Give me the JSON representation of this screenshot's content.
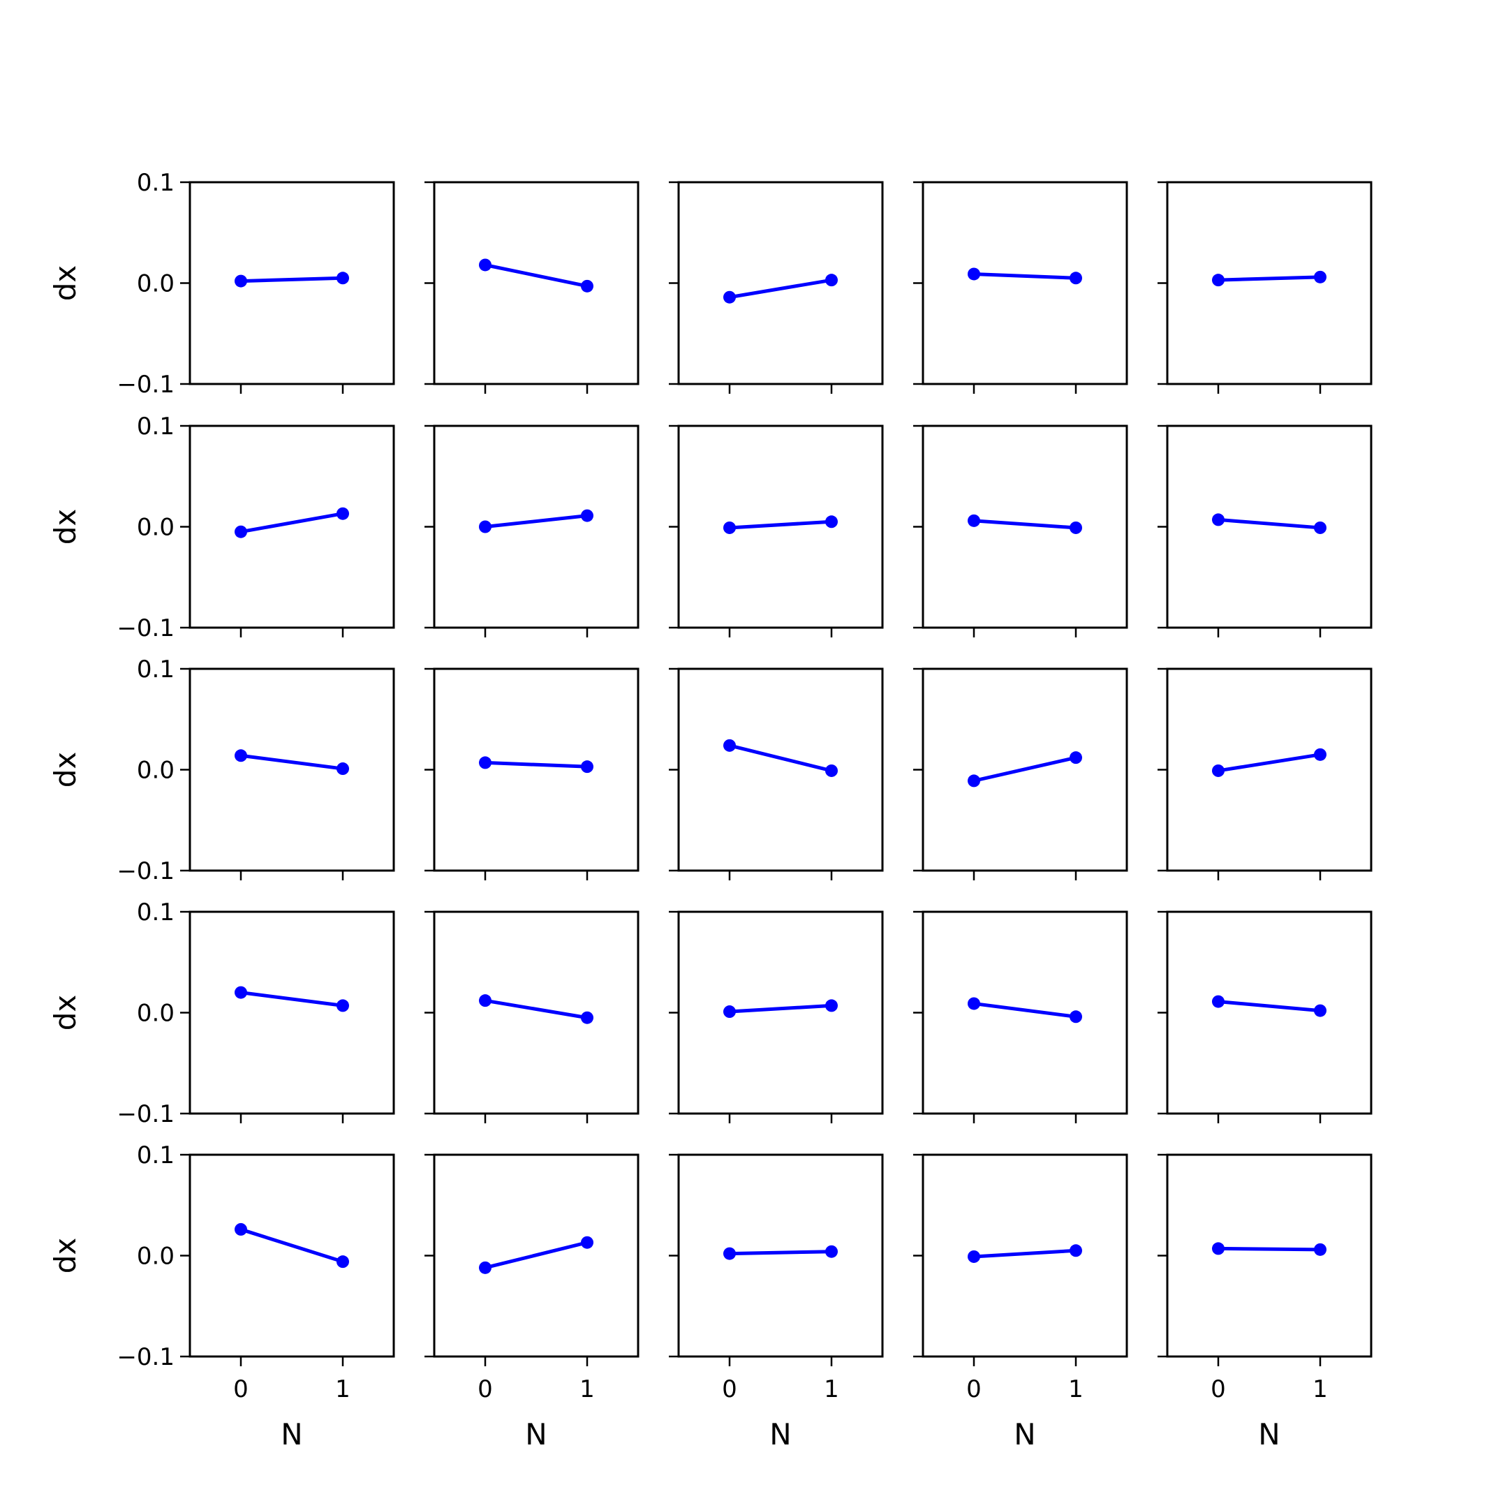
{
  "chart_data": {
    "type": "line",
    "layout": {
      "rows": 5,
      "cols": 5
    },
    "xlabel": "N",
    "ylabel": "dx",
    "x": [
      0,
      1
    ],
    "xticks": [
      0,
      1
    ],
    "xtick_labels": [
      "0",
      "1"
    ],
    "xlim": [
      -0.5,
      1.5
    ],
    "ylim": [
      -0.1,
      0.1
    ],
    "yticks": [
      -0.1,
      0.0,
      0.1
    ],
    "ytick_labels": [
      "−0.1",
      "0.0",
      "0.1"
    ],
    "shared_x_labels_bottom_row_only": true,
    "shared_y_labels_first_column_only": true,
    "line_color": "#0000ff",
    "marker": "circle",
    "grid": false,
    "panels": [
      {
        "values": [
          0.002,
          0.005
        ]
      },
      {
        "values": [
          0.018,
          -0.003
        ]
      },
      {
        "values": [
          -0.014,
          0.003
        ]
      },
      {
        "values": [
          0.009,
          0.005
        ]
      },
      {
        "values": [
          0.003,
          0.006
        ]
      },
      {
        "values": [
          -0.005,
          0.013
        ]
      },
      {
        "values": [
          0.0,
          0.011
        ]
      },
      {
        "values": [
          -0.001,
          0.005
        ]
      },
      {
        "values": [
          0.006,
          -0.001
        ]
      },
      {
        "values": [
          0.007,
          -0.001
        ]
      },
      {
        "values": [
          0.014,
          0.001
        ]
      },
      {
        "values": [
          0.007,
          0.003
        ]
      },
      {
        "values": [
          0.024,
          -0.001
        ]
      },
      {
        "values": [
          -0.011,
          0.012
        ]
      },
      {
        "values": [
          -0.001,
          0.015
        ]
      },
      {
        "values": [
          0.02,
          0.007
        ]
      },
      {
        "values": [
          0.012,
          -0.005
        ]
      },
      {
        "values": [
          0.001,
          0.007
        ]
      },
      {
        "values": [
          0.009,
          -0.004
        ]
      },
      {
        "values": [
          0.011,
          0.002
        ]
      },
      {
        "values": [
          0.026,
          -0.006
        ]
      },
      {
        "values": [
          -0.012,
          0.013
        ]
      },
      {
        "values": [
          0.002,
          0.004
        ]
      },
      {
        "values": [
          -0.001,
          0.005
        ]
      },
      {
        "values": [
          0.007,
          0.006
        ]
      }
    ]
  }
}
